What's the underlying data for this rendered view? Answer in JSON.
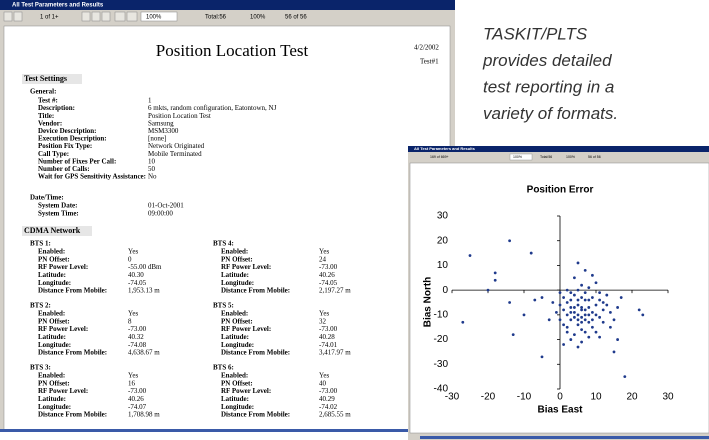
{
  "window": {
    "title": "All Test Parameters and Results",
    "toolbar": {
      "page": "1 of 1+",
      "zoom": "100%",
      "total": "Total:56",
      "percent": "100%",
      "count": "56 of 56"
    }
  },
  "report": {
    "title": "Position Location Test",
    "date": "4/2/2002",
    "test": "Test#1",
    "section1": "Test Settings",
    "general": "General:",
    "fields": [
      {
        "label": "Test #:",
        "value": "1"
      },
      {
        "label": "Description:",
        "value": "6 mkts, random configuration, Eatontown, NJ"
      },
      {
        "label": "Title:",
        "value": "Position Location Test"
      },
      {
        "label": "Vendor:",
        "value": "Samsung"
      },
      {
        "label": "Device Description:",
        "value": "MSM3300"
      },
      {
        "label": "Execution Description:",
        "value": "[none]"
      },
      {
        "label": "Position Fix Type:",
        "value": "Network Originated"
      },
      {
        "label": "Call Type:",
        "value": "Mobile Terminated"
      },
      {
        "label": "Number of Fixes Per Call:",
        "value": "10"
      },
      {
        "label": "Number of Calls:",
        "value": "50"
      },
      {
        "label": "Wait for GPS Sensitivity Assistance:",
        "value": "No"
      }
    ],
    "datetime": "Date/Time:",
    "dt_fields": [
      {
        "label": "System Date:",
        "value": "01-Oct-2001"
      },
      {
        "label": "System Time:",
        "value": "09:00:00"
      }
    ],
    "section2": "CDMA Network",
    "bts_labels": [
      "Enabled:",
      "PN Offset:",
      "RF Power Level:",
      "Latitude:",
      "Longitude:",
      "Distance From Mobile:"
    ],
    "bts": [
      {
        "name": "BTS 1:",
        "values": [
          "Yes",
          "0",
          "-55.00 dBm",
          "40.30",
          "-74.05",
          "1,953.13 m"
        ]
      },
      {
        "name": "BTS 4:",
        "values": [
          "Yes",
          "24",
          "-73.00",
          "40.26",
          "-74.05",
          "2,197.27 m"
        ]
      },
      {
        "name": "BTS 2:",
        "values": [
          "Yes",
          "8",
          "-73.00",
          "40.32",
          "-74.08",
          "4,638.67 m"
        ]
      },
      {
        "name": "BTS 5:",
        "values": [
          "Yes",
          "32",
          "-73.00",
          "40.28",
          "-74.01",
          "3,417.97 m"
        ]
      },
      {
        "name": "BTS 3:",
        "values": [
          "Yes",
          "16",
          "-73.00",
          "40.26",
          "-74.07",
          "1,708.98 m"
        ]
      },
      {
        "name": "BTS 6:",
        "values": [
          "Yes",
          "40",
          "-73.00",
          "40.29",
          "-74.02",
          "2,685.55 m"
        ]
      }
    ]
  },
  "caption": [
    "TASKIT/PLTS",
    "provides detailed",
    "test reporting in a",
    "variety of formats."
  ],
  "chart_window": {
    "title": "All Test Parameters and Results",
    "toolbar": {
      "page": "169 of 669+",
      "zoom": "100%",
      "total": "Total:56",
      "percent": "100%",
      "count": "56 of 56"
    }
  },
  "chart_data": {
    "type": "scatter",
    "title": "Position Error",
    "x_label": "Bias East",
    "y_label": "Bias North",
    "color": "#1f3a8c",
    "xlim": [
      -30,
      30
    ],
    "xticks": [
      -30,
      -20,
      -10,
      0,
      10,
      20,
      30
    ],
    "ylim": [
      -40,
      30
    ],
    "yticks": [
      -40,
      -30,
      -20,
      -10,
      0,
      10,
      20,
      30
    ],
    "x": [
      2,
      3,
      4,
      5,
      6,
      7,
      8,
      3,
      5,
      6,
      4,
      7,
      9,
      10,
      2,
      1,
      0,
      8,
      6,
      4,
      11,
      12,
      3,
      5,
      7,
      9,
      2,
      1,
      5,
      6,
      8,
      10,
      4,
      3,
      7,
      9,
      11,
      13,
      14,
      12,
      10,
      8,
      6,
      0,
      -1,
      -2,
      1,
      3,
      5,
      7,
      9,
      11,
      13,
      15,
      16,
      14,
      2,
      4,
      6,
      8,
      10,
      12,
      5,
      6,
      4,
      7,
      3,
      5,
      8,
      6,
      2,
      0,
      9,
      7,
      16,
      1,
      11,
      5,
      17,
      -27,
      -25,
      -14,
      -20,
      -18,
      -18,
      -8,
      -10,
      -13,
      -5,
      -3,
      18,
      15,
      23,
      22,
      -14,
      -7,
      -5
    ],
    "y": [
      -5,
      -7,
      -9,
      -6,
      -8,
      -10,
      -7,
      -12,
      -14,
      -3,
      -2,
      -4,
      -9,
      -6,
      -10,
      -8,
      -6,
      -13,
      -16,
      -18,
      -11,
      -8,
      -4,
      -10,
      -12,
      -15,
      -15,
      -3,
      0,
      2,
      1,
      3,
      5,
      -1,
      -1,
      -3,
      -4,
      -6,
      -9,
      -13,
      -17,
      -19,
      -21,
      -12,
      -9,
      -5,
      -14,
      -20,
      -23,
      -17,
      -12,
      -1,
      -2,
      -12,
      -7,
      -15,
      -17,
      -11,
      -13,
      -4,
      -10,
      -5,
      -4,
      -7,
      -7,
      -8,
      -9,
      -12,
      -10,
      -11,
      0,
      -1,
      6,
      8,
      -20,
      -22,
      -19,
      11,
      -3,
      -13,
      14,
      20,
      0,
      7,
      4,
      15,
      -10,
      -18,
      -27,
      -12,
      -35,
      -25,
      -10,
      -8,
      -5,
      -4,
      -3
    ]
  }
}
